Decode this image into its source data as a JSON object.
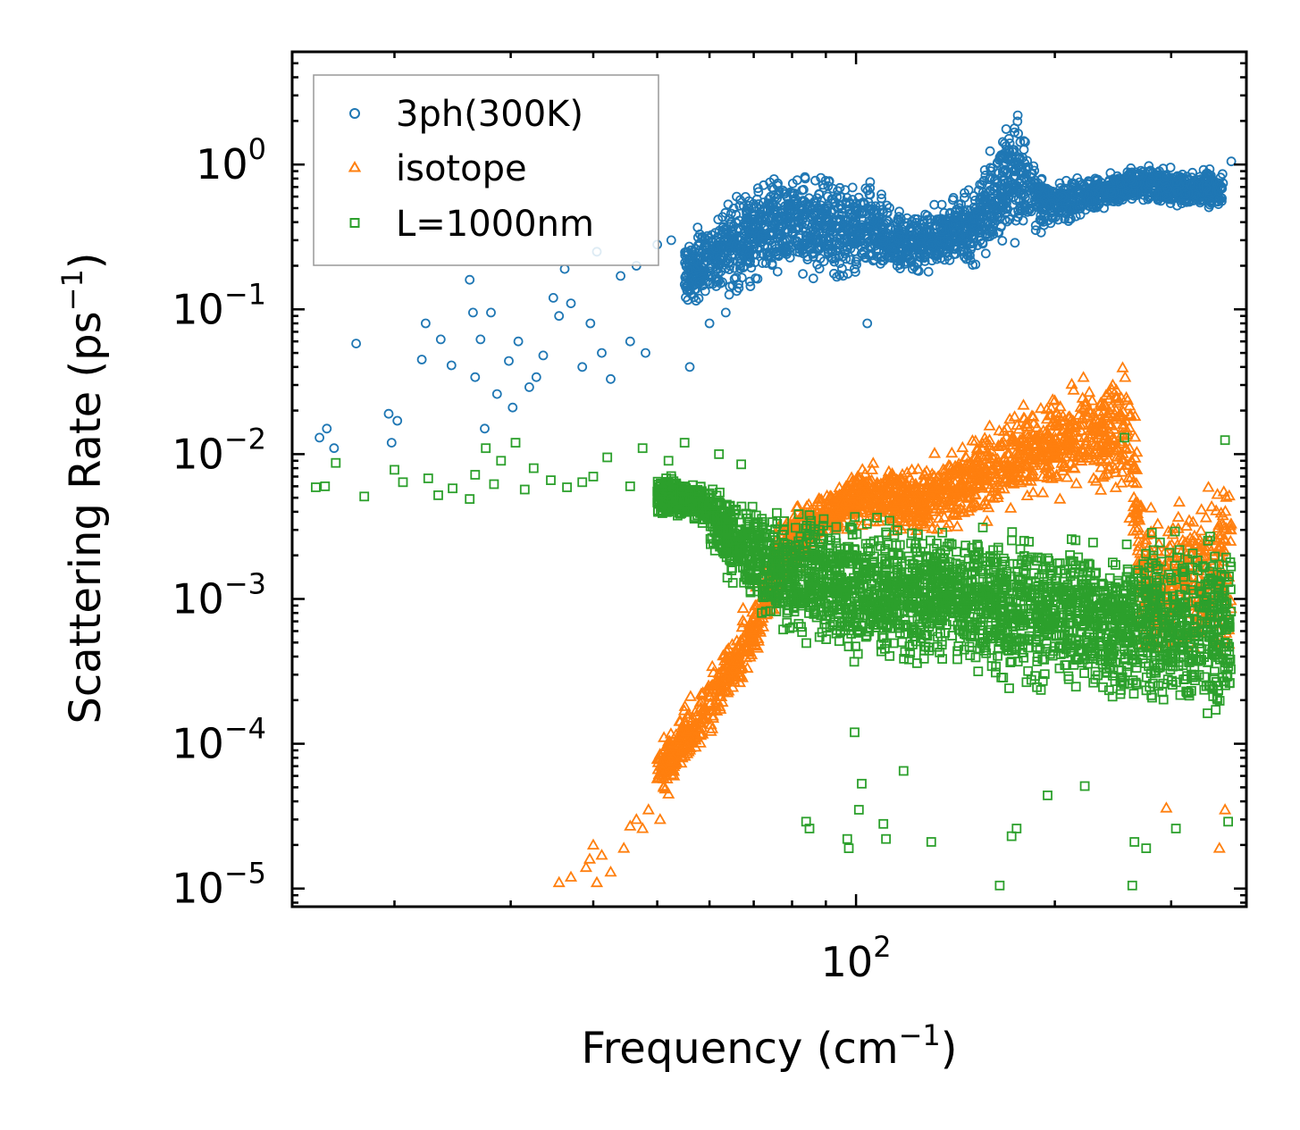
{
  "chart_data": {
    "type": "scatter",
    "title": "",
    "xlabel": {
      "base": "Frequency (cm",
      "sup": "−1",
      "tail": ")"
    },
    "ylabel": {
      "base": "Scattering Rate (ps",
      "sup": "−1",
      "tail": ")"
    },
    "xscale": "log",
    "yscale": "log",
    "xlim": [
      14,
      390
    ],
    "ylim": [
      7.5e-06,
      6.0
    ],
    "x_ticks": [
      {
        "value": 100,
        "base": "10",
        "exp": "2"
      }
    ],
    "y_ticks": [
      {
        "value": 1,
        "base": "10",
        "exp": "0"
      },
      {
        "value": 0.1,
        "base": "10",
        "exp": "−1"
      },
      {
        "value": 0.01,
        "base": "10",
        "exp": "−2"
      },
      {
        "value": 0.001,
        "base": "10",
        "exp": "−3"
      },
      {
        "value": 0.0001,
        "base": "10",
        "exp": "−4"
      },
      {
        "value": 1e-05,
        "base": "10",
        "exp": "−5"
      }
    ],
    "legend_position": "top-left",
    "series": [
      {
        "name": "3ph(300K)",
        "marker": "circle",
        "color": "#1f77b4",
        "dense_envelope": [
          {
            "x": 55,
            "lo": 0.09,
            "hi": 0.35
          },
          {
            "x": 62,
            "lo": 0.09,
            "hi": 0.6
          },
          {
            "x": 70,
            "lo": 0.12,
            "hi": 0.95
          },
          {
            "x": 80,
            "lo": 0.15,
            "hi": 1.1
          },
          {
            "x": 92,
            "lo": 0.12,
            "hi": 1.0
          },
          {
            "x": 105,
            "lo": 0.15,
            "hi": 0.85
          },
          {
            "x": 120,
            "lo": 0.15,
            "hi": 0.5
          },
          {
            "x": 135,
            "lo": 0.17,
            "hi": 0.6
          },
          {
            "x": 150,
            "lo": 0.18,
            "hi": 0.75
          },
          {
            "x": 160,
            "lo": 0.2,
            "hi": 1.6
          },
          {
            "x": 175,
            "lo": 0.25,
            "hi": 3.0
          },
          {
            "x": 185,
            "lo": 0.3,
            "hi": 1.2
          },
          {
            "x": 200,
            "lo": 0.33,
            "hi": 0.85
          },
          {
            "x": 230,
            "lo": 0.45,
            "hi": 0.9
          },
          {
            "x": 270,
            "lo": 0.55,
            "hi": 1.05
          },
          {
            "x": 320,
            "lo": 0.45,
            "hi": 1.0
          },
          {
            "x": 360,
            "lo": 0.45,
            "hi": 1.0
          }
        ],
        "sparse_points": [
          [
            15.4,
            0.013
          ],
          [
            15.8,
            0.015
          ],
          [
            16.2,
            0.011
          ],
          [
            17.5,
            0.058
          ],
          [
            19.6,
            0.019
          ],
          [
            19.8,
            0.012
          ],
          [
            20.2,
            0.017
          ],
          [
            22.0,
            0.045
          ],
          [
            22.3,
            0.08
          ],
          [
            23.5,
            0.062
          ],
          [
            24.4,
            0.041
          ],
          [
            26.0,
            0.16
          ],
          [
            26.3,
            0.095
          ],
          [
            26.5,
            0.034
          ],
          [
            27.0,
            0.062
          ],
          [
            27.4,
            0.015
          ],
          [
            28.0,
            0.095
          ],
          [
            28.6,
            0.026
          ],
          [
            29.8,
            0.044
          ],
          [
            30.2,
            0.021
          ],
          [
            30.8,
            0.06
          ],
          [
            32.0,
            0.029
          ],
          [
            32.8,
            0.034
          ],
          [
            33.6,
            0.048
          ],
          [
            34.8,
            0.12
          ],
          [
            35.5,
            0.09
          ],
          [
            36.2,
            0.19
          ],
          [
            37.0,
            0.11
          ],
          [
            38.5,
            0.04
          ],
          [
            39.6,
            0.08
          ],
          [
            40.5,
            0.25
          ],
          [
            41.2,
            0.05
          ],
          [
            42.5,
            0.033
          ],
          [
            44.0,
            0.17
          ],
          [
            45.5,
            0.06
          ],
          [
            46.5,
            0.2
          ],
          [
            48.0,
            0.05
          ],
          [
            50.0,
            0.28
          ],
          [
            52.5,
            0.3
          ],
          [
            56.0,
            0.04
          ],
          [
            60.0,
            0.08
          ],
          [
            63.5,
            0.095
          ],
          [
            104.0,
            0.08
          ],
          [
            370.0,
            1.05
          ]
        ]
      },
      {
        "name": "isotope",
        "marker": "triangle",
        "color": "#ff7f0e",
        "dense_envelope": [
          {
            "x": 50,
            "lo": 4e-05,
            "hi": 0.0001
          },
          {
            "x": 57,
            "lo": 7e-05,
            "hi": 0.00025
          },
          {
            "x": 63,
            "lo": 0.00014,
            "hi": 0.0005
          },
          {
            "x": 70,
            "lo": 0.0003,
            "hi": 0.0012
          },
          {
            "x": 78,
            "lo": 0.001,
            "hi": 0.005
          },
          {
            "x": 90,
            "lo": 0.0025,
            "hi": 0.006
          },
          {
            "x": 105,
            "lo": 0.003,
            "hi": 0.01
          },
          {
            "x": 125,
            "lo": 0.0025,
            "hi": 0.009
          },
          {
            "x": 150,
            "lo": 0.003,
            "hi": 0.015
          },
          {
            "x": 185,
            "lo": 0.004,
            "hi": 0.03
          },
          {
            "x": 215,
            "lo": 0.005,
            "hi": 0.035
          },
          {
            "x": 250,
            "lo": 0.004,
            "hi": 0.055
          },
          {
            "x": 260,
            "lo": 0.002,
            "hi": 0.06
          },
          {
            "x": 272,
            "lo": 0.0003,
            "hi": 0.006
          },
          {
            "x": 300,
            "lo": 0.0003,
            "hi": 0.005
          },
          {
            "x": 340,
            "lo": 0.0003,
            "hi": 0.008
          },
          {
            "x": 370,
            "lo": 0.0002,
            "hi": 0.013
          }
        ],
        "sparse_points": [
          [
            35.5,
            1.1e-05
          ],
          [
            37.0,
            1.2e-05
          ],
          [
            39.0,
            1.4e-05
          ],
          [
            39.5,
            1.6e-05
          ],
          [
            40.0,
            2e-05
          ],
          [
            40.5,
            1.1e-05
          ],
          [
            41.2,
            1.7e-05
          ],
          [
            42.5,
            1.3e-05
          ],
          [
            44.5,
            1.9e-05
          ],
          [
            45.5,
            2.7e-05
          ],
          [
            46.5,
            3e-05
          ],
          [
            47.5,
            2.6e-05
          ],
          [
            48.5,
            3.5e-05
          ],
          [
            50.5,
            3e-05
          ],
          [
            52.0,
            4.5e-05
          ],
          [
            53.0,
            6e-05
          ],
          [
            295.0,
            3.6e-05
          ],
          [
            355.0,
            1.9e-05
          ],
          [
            362.0,
            3.5e-05
          ]
        ]
      },
      {
        "name": "L=1000nm",
        "marker": "square",
        "color": "#2ca02c",
        "dense_envelope": [
          {
            "x": 50,
            "lo": 0.0035,
            "hi": 0.008
          },
          {
            "x": 58,
            "lo": 0.003,
            "hi": 0.007
          },
          {
            "x": 65,
            "lo": 0.001,
            "hi": 0.006
          },
          {
            "x": 72,
            "lo": 0.0006,
            "hi": 0.0055
          },
          {
            "x": 82,
            "lo": 0.0004,
            "hi": 0.005
          },
          {
            "x": 95,
            "lo": 0.00035,
            "hi": 0.0045
          },
          {
            "x": 115,
            "lo": 0.0003,
            "hi": 0.004
          },
          {
            "x": 140,
            "lo": 0.00025,
            "hi": 0.004
          },
          {
            "x": 170,
            "lo": 0.0002,
            "hi": 0.004
          },
          {
            "x": 200,
            "lo": 0.0002,
            "hi": 0.0035
          },
          {
            "x": 235,
            "lo": 0.00015,
            "hi": 0.0035
          },
          {
            "x": 262,
            "lo": 0.00015,
            "hi": 0.003
          },
          {
            "x": 275,
            "lo": 0.00012,
            "hi": 0.004
          },
          {
            "x": 310,
            "lo": 0.00012,
            "hi": 0.004
          },
          {
            "x": 345,
            "lo": 0.0001,
            "hi": 0.004
          },
          {
            "x": 370,
            "lo": 0.0001,
            "hi": 0.0035
          }
        ],
        "sparse_points": [
          [
            15.2,
            0.0059
          ],
          [
            15.7,
            0.006
          ],
          [
            16.3,
            0.0087
          ],
          [
            18.0,
            0.0051
          ],
          [
            20.0,
            0.0078
          ],
          [
            20.6,
            0.0064
          ],
          [
            22.5,
            0.0068
          ],
          [
            23.3,
            0.0052
          ],
          [
            24.5,
            0.0058
          ],
          [
            26.0,
            0.0049
          ],
          [
            26.5,
            0.0072
          ],
          [
            27.5,
            0.011
          ],
          [
            28.3,
            0.0062
          ],
          [
            29.0,
            0.009
          ],
          [
            30.5,
            0.012
          ],
          [
            31.5,
            0.0057
          ],
          [
            32.5,
            0.008
          ],
          [
            34.5,
            0.0066
          ],
          [
            36.5,
            0.0059
          ],
          [
            38.5,
            0.0064
          ],
          [
            40.0,
            0.007
          ],
          [
            42.0,
            0.0095
          ],
          [
            45.5,
            0.006
          ],
          [
            47.5,
            0.011
          ],
          [
            52.0,
            0.009
          ],
          [
            55.0,
            0.012
          ],
          [
            62.0,
            0.01
          ],
          [
            67.0,
            0.0085
          ],
          [
            72.0,
            0.0008
          ],
          [
            73.0,
            0.00082
          ],
          [
            84.0,
            2.9e-05
          ],
          [
            85.0,
            2.6e-05
          ],
          [
            97.0,
            2.2e-05
          ],
          [
            97.5,
            1.9e-05
          ],
          [
            99.5,
            0.00012
          ],
          [
            101.0,
            3.5e-05
          ],
          [
            102.0,
            5.3e-05
          ],
          [
            110.0,
            2.8e-05
          ],
          [
            111.0,
            2.2e-05
          ],
          [
            118.0,
            6.5e-05
          ],
          [
            130.0,
            2.1e-05
          ],
          [
            165.0,
            1.05e-05
          ],
          [
            172.0,
            2.3e-05
          ],
          [
            175.0,
            2.6e-05
          ],
          [
            195.0,
            4.4e-05
          ],
          [
            222.0,
            5.1e-05
          ],
          [
            255.0,
            0.013
          ],
          [
            262.0,
            1.05e-05
          ],
          [
            264.0,
            2.1e-05
          ],
          [
            275.0,
            1.9e-05
          ],
          [
            305.0,
            2.6e-05
          ],
          [
            362.0,
            0.0125
          ],
          [
            366.0,
            2.9e-05
          ]
        ]
      }
    ]
  }
}
